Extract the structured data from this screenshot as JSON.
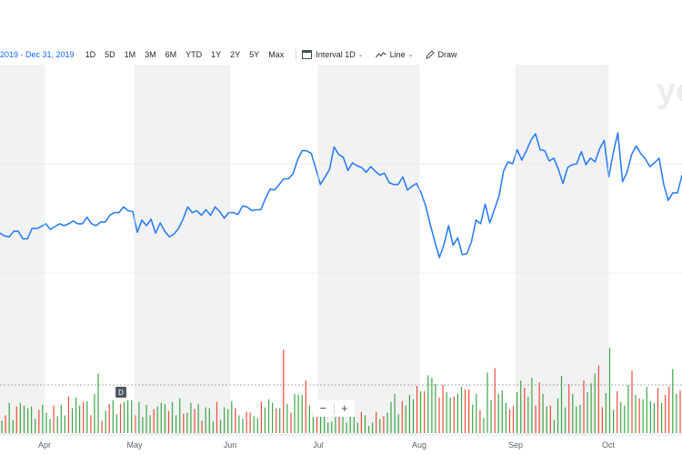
{
  "toolbar": {
    "date_range": "2019 - Dec 31, 2019",
    "periods": [
      "1D",
      "5D",
      "1M",
      "3M",
      "6M",
      "YTD",
      "1Y",
      "2Y",
      "5Y",
      "Max"
    ],
    "interval_label": "Interval",
    "interval_value": "1D",
    "line_label": "Line",
    "draw_label": "Draw"
  },
  "watermark": "yo",
  "dividend_marker": "D",
  "zoom": {
    "minus": "−",
    "plus": "+"
  },
  "colors": {
    "line": "#2d7ff0",
    "up": "#3ba648",
    "down": "#f04b3c",
    "band": "#f2f2f2"
  },
  "icons": {
    "interval": "calendar-icon",
    "line": "line-chart-icon",
    "draw": "pencil-icon"
  },
  "chart_data": {
    "type": "line",
    "title": "",
    "xlabel": "",
    "ylabel": "",
    "x_ticks": [
      "Apr",
      "May",
      "Jun",
      "Jul",
      "Aug",
      "Sep",
      "Oct"
    ],
    "y_range_note": "price axis not visible",
    "series": [
      {
        "values": [
          36,
          33,
          32,
          38,
          38,
          30,
          30,
          41,
          41,
          43,
          46,
          40,
          43,
          46,
          44,
          46,
          49,
          46,
          46,
          53,
          46,
          44,
          48,
          48,
          55,
          58,
          58,
          64,
          60,
          59,
          37,
          50,
          44,
          51,
          36,
          47,
          38,
          32,
          35,
          41,
          51,
          64,
          58,
          60,
          55,
          61,
          55,
          64,
          59,
          52,
          58,
          58,
          56,
          65,
          64,
          60,
          61,
          61,
          73,
          83,
          82,
          88,
          94,
          94,
          99,
          114,
          124,
          124,
          121,
          105,
          88,
          96,
          104,
          128,
          120,
          117,
          103,
          111,
          108,
          106,
          101,
          107,
          102,
          98,
          100,
          90,
          88,
          88,
          96,
          82,
          86,
          89,
          79,
          65,
          45,
          27,
          10,
          24,
          44,
          23,
          31,
          13,
          14,
          27,
          50,
          46,
          67,
          47,
          61,
          75,
          102,
          112,
          110,
          125,
          114,
          124,
          135,
          142,
          125,
          124,
          113,
          116,
          104,
          89,
          106,
          109,
          110,
          123,
          109,
          116,
          112,
          126,
          135,
          96,
          122,
          143,
          91,
          101,
          120,
          129,
          121,
          115,
          107,
          111,
          116,
          88,
          71,
          79,
          79,
          98
        ]
      }
    ],
    "volume": [
      {
        "v": 14,
        "dir": "up"
      },
      {
        "v": 20,
        "dir": "down"
      },
      {
        "v": 34,
        "dir": "up"
      },
      {
        "v": 15,
        "dir": "up"
      },
      {
        "v": 30,
        "dir": "down"
      },
      {
        "v": 34,
        "dir": "up"
      },
      {
        "v": 31,
        "dir": "up"
      },
      {
        "v": 28,
        "dir": "up"
      },
      {
        "v": 30,
        "dir": "up"
      },
      {
        "v": 16,
        "dir": "up"
      },
      {
        "v": 26,
        "dir": "down"
      },
      {
        "v": 32,
        "dir": "up"
      },
      {
        "v": 23,
        "dir": "up"
      },
      {
        "v": 16,
        "dir": "up"
      },
      {
        "v": 31,
        "dir": "down"
      },
      {
        "v": 19,
        "dir": "up"
      },
      {
        "v": 32,
        "dir": "up"
      },
      {
        "v": 20,
        "dir": "up"
      },
      {
        "v": 41,
        "dir": "down"
      },
      {
        "v": 28,
        "dir": "up"
      },
      {
        "v": 40,
        "dir": "up"
      },
      {
        "v": 31,
        "dir": "up"
      },
      {
        "v": 35,
        "dir": "down"
      },
      {
        "v": 36,
        "dir": "up"
      },
      {
        "v": 20,
        "dir": "down"
      },
      {
        "v": 44,
        "dir": "up"
      },
      {
        "v": 67,
        "dir": "up"
      },
      {
        "v": 14,
        "dir": "down"
      },
      {
        "v": 25,
        "dir": "up"
      },
      {
        "v": 33,
        "dir": "down"
      },
      {
        "v": 37,
        "dir": "up"
      },
      {
        "v": 21,
        "dir": "up"
      },
      {
        "v": 33,
        "dir": "down"
      },
      {
        "v": 35,
        "dir": "up"
      },
      {
        "v": 37,
        "dir": "up"
      },
      {
        "v": 37,
        "dir": "up"
      },
      {
        "v": 20,
        "dir": "down"
      },
      {
        "v": 35,
        "dir": "up"
      },
      {
        "v": 18,
        "dir": "up"
      },
      {
        "v": 32,
        "dir": "up"
      },
      {
        "v": 20,
        "dir": "up"
      },
      {
        "v": 27,
        "dir": "down"
      },
      {
        "v": 30,
        "dir": "up"
      },
      {
        "v": 34,
        "dir": "up"
      },
      {
        "v": 33,
        "dir": "up"
      },
      {
        "v": 25,
        "dir": "down"
      },
      {
        "v": 35,
        "dir": "up"
      },
      {
        "v": 20,
        "dir": "up"
      },
      {
        "v": 39,
        "dir": "up"
      },
      {
        "v": 22,
        "dir": "down"
      },
      {
        "v": 23,
        "dir": "up"
      },
      {
        "v": 34,
        "dir": "up"
      },
      {
        "v": 27,
        "dir": "down"
      },
      {
        "v": 33,
        "dir": "up"
      },
      {
        "v": 14,
        "dir": "down"
      },
      {
        "v": 29,
        "dir": "up"
      },
      {
        "v": 28,
        "dir": "up"
      },
      {
        "v": 13,
        "dir": "up"
      },
      {
        "v": 35,
        "dir": "down"
      },
      {
        "v": 15,
        "dir": "up"
      },
      {
        "v": 29,
        "dir": "up"
      },
      {
        "v": 27,
        "dir": "up"
      },
      {
        "v": 36,
        "dir": "up"
      },
      {
        "v": 28,
        "dir": "down"
      },
      {
        "v": 20,
        "dir": "up"
      },
      {
        "v": 16,
        "dir": "up"
      },
      {
        "v": 24,
        "dir": "down"
      },
      {
        "v": 23,
        "dir": "down"
      },
      {
        "v": 19,
        "dir": "up"
      },
      {
        "v": 17,
        "dir": "up"
      },
      {
        "v": 35,
        "dir": "down"
      },
      {
        "v": 29,
        "dir": "up"
      },
      {
        "v": 38,
        "dir": "up"
      },
      {
        "v": 34,
        "dir": "up"
      },
      {
        "v": 28,
        "dir": "down"
      },
      {
        "v": 28,
        "dir": "up"
      },
      {
        "v": 94,
        "dir": "down"
      },
      {
        "v": 33,
        "dir": "up"
      },
      {
        "v": 23,
        "dir": "down"
      },
      {
        "v": 44,
        "dir": "up"
      },
      {
        "v": 43,
        "dir": "up"
      },
      {
        "v": 43,
        "dir": "up"
      },
      {
        "v": 59,
        "dir": "down"
      },
      {
        "v": 31,
        "dir": "up"
      },
      {
        "v": 24,
        "dir": "up"
      },
      {
        "v": 37,
        "dir": "down"
      },
      {
        "v": 31,
        "dir": "up"
      },
      {
        "v": 21,
        "dir": "up"
      },
      {
        "v": 12,
        "dir": "up"
      },
      {
        "v": 13,
        "dir": "up"
      },
      {
        "v": 24,
        "dir": "up"
      },
      {
        "v": 31,
        "dir": "down"
      },
      {
        "v": 24,
        "dir": "up"
      },
      {
        "v": 12,
        "dir": "up"
      },
      {
        "v": 23,
        "dir": "up"
      },
      {
        "v": 23,
        "dir": "up"
      },
      {
        "v": 12,
        "dir": "up"
      },
      {
        "v": 24,
        "dir": "down"
      },
      {
        "v": 20,
        "dir": "up"
      },
      {
        "v": 8,
        "dir": "up"
      },
      {
        "v": 12,
        "dir": "up"
      },
      {
        "v": 24,
        "dir": "down"
      },
      {
        "v": 16,
        "dir": "up"
      },
      {
        "v": 19,
        "dir": "down"
      },
      {
        "v": 23,
        "dir": "up"
      },
      {
        "v": 35,
        "dir": "up"
      },
      {
        "v": 44,
        "dir": "up"
      },
      {
        "v": 21,
        "dir": "up"
      },
      {
        "v": 36,
        "dir": "down"
      },
      {
        "v": 31,
        "dir": "up"
      },
      {
        "v": 43,
        "dir": "up"
      },
      {
        "v": 38,
        "dir": "up"
      },
      {
        "v": 53,
        "dir": "down"
      },
      {
        "v": 47,
        "dir": "up"
      },
      {
        "v": 47,
        "dir": "down"
      },
      {
        "v": 65,
        "dir": "up"
      },
      {
        "v": 62,
        "dir": "up"
      },
      {
        "v": 55,
        "dir": "up"
      },
      {
        "v": 40,
        "dir": "down"
      },
      {
        "v": 54,
        "dir": "down"
      },
      {
        "v": 46,
        "dir": "up"
      },
      {
        "v": 40,
        "dir": "up"
      },
      {
        "v": 41,
        "dir": "down"
      },
      {
        "v": 44,
        "dir": "up"
      },
      {
        "v": 52,
        "dir": "up"
      },
      {
        "v": 49,
        "dir": "down"
      },
      {
        "v": 49,
        "dir": "down"
      },
      {
        "v": 32,
        "dir": "up"
      },
      {
        "v": 44,
        "dir": "up"
      },
      {
        "v": 26,
        "dir": "down"
      },
      {
        "v": 17,
        "dir": "up"
      },
      {
        "v": 68,
        "dir": "up"
      },
      {
        "v": 37,
        "dir": "up"
      },
      {
        "v": 73,
        "dir": "down"
      },
      {
        "v": 44,
        "dir": "up"
      },
      {
        "v": 48,
        "dir": "up"
      },
      {
        "v": 34,
        "dir": "up"
      },
      {
        "v": 27,
        "dir": "down"
      },
      {
        "v": 30,
        "dir": "down"
      },
      {
        "v": 46,
        "dir": "up"
      },
      {
        "v": 59,
        "dir": "up"
      },
      {
        "v": 51,
        "dir": "down"
      },
      {
        "v": 41,
        "dir": "up"
      },
      {
        "v": 62,
        "dir": "up"
      },
      {
        "v": 31,
        "dir": "down"
      },
      {
        "v": 57,
        "dir": "down"
      },
      {
        "v": 44,
        "dir": "up"
      },
      {
        "v": 30,
        "dir": "up"
      },
      {
        "v": 31,
        "dir": "down"
      },
      {
        "v": 15,
        "dir": "up"
      },
      {
        "v": 39,
        "dir": "up"
      },
      {
        "v": 64,
        "dir": "up"
      },
      {
        "v": 29,
        "dir": "up"
      },
      {
        "v": 55,
        "dir": "down"
      },
      {
        "v": 44,
        "dir": "up"
      },
      {
        "v": 30,
        "dir": "up"
      },
      {
        "v": 32,
        "dir": "up"
      },
      {
        "v": 59,
        "dir": "down"
      },
      {
        "v": 46,
        "dir": "up"
      },
      {
        "v": 56,
        "dir": "up"
      },
      {
        "v": 67,
        "dir": "up"
      },
      {
        "v": 76,
        "dir": "down"
      },
      {
        "v": 29,
        "dir": "down"
      },
      {
        "v": 45,
        "dir": "up"
      },
      {
        "v": 96,
        "dir": "up"
      },
      {
        "v": 26,
        "dir": "up"
      },
      {
        "v": 47,
        "dir": "down"
      },
      {
        "v": 35,
        "dir": "up"
      },
      {
        "v": 31,
        "dir": "up"
      },
      {
        "v": 54,
        "dir": "up"
      },
      {
        "v": 70,
        "dir": "down"
      },
      {
        "v": 43,
        "dir": "up"
      },
      {
        "v": 39,
        "dir": "down"
      },
      {
        "v": 38,
        "dir": "up"
      },
      {
        "v": 52,
        "dir": "up"
      },
      {
        "v": 36,
        "dir": "up"
      },
      {
        "v": 34,
        "dir": "up"
      },
      {
        "v": 51,
        "dir": "down"
      },
      {
        "v": 34,
        "dir": "up"
      },
      {
        "v": 43,
        "dir": "down"
      },
      {
        "v": 52,
        "dir": "down"
      },
      {
        "v": 72,
        "dir": "up"
      },
      {
        "v": 44,
        "dir": "up"
      },
      {
        "v": 48,
        "dir": "down"
      }
    ]
  }
}
